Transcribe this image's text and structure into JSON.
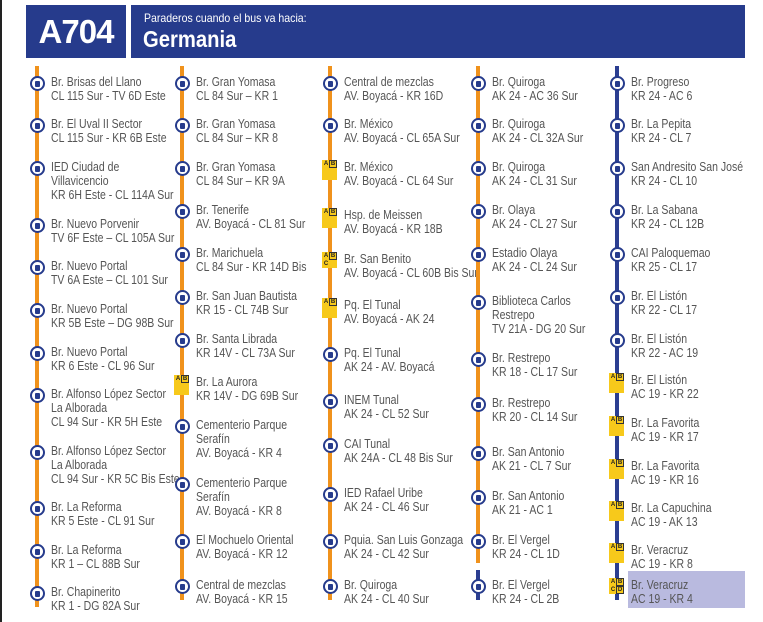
{
  "header": {
    "route_code": "A704",
    "subtitle": "Paraderos cuando el bus va hacia:",
    "destination": "Germania"
  },
  "colors": {
    "header": "#263b8c",
    "line_orange": "#f0921c",
    "line_blue": "#2b3e91",
    "badge": "#f7c91b",
    "highlight": "#b9badf"
  },
  "columns": [
    {
      "stops": [
        {
          "lines": [
            "Br. Brisas del Llano",
            "CL 115 Sur - TV 6D Este"
          ],
          "icon": "bus-stop-icon"
        },
        {
          "lines": [
            "Br. El Uval II Sector",
            "CL 115 Sur - KR 6B Este"
          ],
          "icon": "bus-stop-icon"
        },
        {
          "lines": [
            "IED Ciudad de",
            "Villavicencio",
            "KR 6H Este - CL 114A Sur"
          ],
          "icon": "bus-stop-icon"
        },
        {
          "lines": [
            "Br. Nuevo Porvenir",
            "TV 6F Este – CL 105A Sur"
          ],
          "icon": "bus-stop-icon"
        },
        {
          "lines": [
            "Br. Nuevo Portal",
            "TV 6A Este – CL 101 Sur"
          ],
          "icon": "bus-stop-icon"
        },
        {
          "lines": [
            "Br. Nuevo Portal",
            "KR 5B Este – DG 98B Sur"
          ],
          "icon": "bus-stop-icon"
        },
        {
          "lines": [
            "Br. Nuevo Portal",
            "KR 6 Este - CL 96 Sur"
          ],
          "icon": "bus-stop-icon"
        },
        {
          "lines": [
            "Br. Alfonso López Sector",
            "La Alborada",
            "CL 94 Sur - KR 5H Este"
          ],
          "icon": "bus-stop-icon"
        },
        {
          "lines": [
            "Br. Alfonso López Sector",
            "La Alborada",
            "CL 94 Sur - KR 5C Bis Este"
          ],
          "icon": "bus-stop-icon"
        },
        {
          "lines": [
            "Br. La Reforma",
            "KR 5 Este - CL 91 Sur"
          ],
          "icon": "bus-stop-icon"
        },
        {
          "lines": [
            "Br. La Reforma",
            "KR 1 – CL 88B Sur"
          ],
          "icon": "bus-stop-icon"
        },
        {
          "lines": [
            "Br. Chapinerito",
            "KR 1 - DG 82A Sur"
          ],
          "icon": "bus-stop-icon"
        }
      ]
    },
    {
      "stops": [
        {
          "lines": [
            "Br. Gran Yomasa",
            "CL 84 Sur – KR 1"
          ],
          "icon": "bus-stop-icon"
        },
        {
          "lines": [
            "Br. Gran Yomasa",
            "CL 84 Sur – KR 8"
          ],
          "icon": "bus-stop-icon"
        },
        {
          "lines": [
            "Br. Gran Yomasa",
            "CL 84 Sur – KR 9A"
          ],
          "icon": "bus-stop-icon"
        },
        {
          "lines": [
            "Br. Tenerife",
            "AV. Boyacá - CL 81 Sur"
          ],
          "icon": "bus-stop-icon"
        },
        {
          "lines": [
            "Br. Marichuela",
            "CL 84 Sur - KR 14D Bis"
          ],
          "icon": "bus-stop-icon"
        },
        {
          "lines": [
            "Br. San Juan Bautista",
            "KR 15 - CL 74B Sur"
          ],
          "icon": "bus-stop-icon"
        },
        {
          "lines": [
            "Br. Santa Librada",
            "KR 14V - CL 73A Sur"
          ],
          "icon": "bus-stop-icon"
        },
        {
          "lines": [
            "Br. La Aurora",
            "KR 14V - DG 69B Sur"
          ],
          "icon": "modules-ab-icon",
          "modules": [
            "A",
            "B"
          ]
        },
        {
          "lines": [
            "Cementerio Parque",
            "Serafín",
            "AV. Boyacá - KR 4"
          ],
          "icon": "bus-stop-icon"
        },
        {
          "lines": [
            "Cementerio Parque",
            "Serafín",
            "AV. Boyacá - KR 8"
          ],
          "icon": "bus-stop-icon"
        },
        {
          "lines": [
            "El Mochuelo Oriental",
            "AV. Boyacá - KR 12"
          ],
          "icon": "bus-stop-icon"
        },
        {
          "lines": [
            "Central de mezclas",
            "AV. Boyacá - KR 15"
          ],
          "icon": "bus-stop-icon"
        }
      ]
    },
    {
      "stops": [
        {
          "lines": [
            "Central de mezclas",
            "AV. Boyacá - KR 16D"
          ],
          "icon": "bus-stop-icon"
        },
        {
          "lines": [
            "Br. México",
            "AV. Boyacá - CL 65A Sur"
          ],
          "icon": "bus-stop-icon"
        },
        {
          "lines": [
            "Br. México",
            "AV. Boyacá - CL 64 Sur"
          ],
          "icon": "modules-ab-icon",
          "modules": [
            "A",
            "B"
          ]
        },
        {
          "lines": [
            "Hsp. de Meissen",
            "AV. Boyacá - KR 18B"
          ],
          "icon": "modules-ab-icon",
          "modules": [
            "A",
            "B"
          ]
        },
        {
          "lines": [
            "Br. San Benito",
            "AV. Boyacá - CL 60B Bis Sur"
          ],
          "icon": "modules-abc-icon",
          "modules": [
            "A",
            "B",
            "C"
          ]
        },
        {
          "lines": [
            "Pq. El Tunal",
            "AV. Boyacá - AK 24"
          ],
          "icon": "modules-ab-icon",
          "modules": [
            "A",
            "B"
          ]
        },
        {
          "lines": [
            "Pq. El Tunal",
            "AK 24 - AV. Boyacá"
          ],
          "icon": "bus-stop-icon"
        },
        {
          "lines": [
            "INEM Tunal",
            "AK 24 - CL 52 Sur"
          ],
          "icon": "bus-stop-icon"
        },
        {
          "lines": [
            "CAI Tunal",
            "AK 24A - CL 48 Bis Sur"
          ],
          "icon": "bus-stop-icon"
        },
        {
          "lines": [
            "IED Rafael Uribe",
            "AK 24 - CL 46 Sur"
          ],
          "icon": "bus-stop-icon"
        },
        {
          "lines": [
            "Pquia. San Luis Gonzaga",
            "AK 24 - CL 42 Sur"
          ],
          "icon": "bus-stop-icon"
        },
        {
          "lines": [
            "Br. Quiroga",
            "AK 24 - CL 40 Sur"
          ],
          "icon": "bus-stop-icon"
        }
      ]
    },
    {
      "stops": [
        {
          "lines": [
            "Br. Quiroga",
            "AK 24 - AC 36 Sur"
          ],
          "icon": "bus-stop-icon"
        },
        {
          "lines": [
            "Br. Quiroga",
            "AK 24 - CL 32A Sur"
          ],
          "icon": "bus-stop-icon"
        },
        {
          "lines": [
            "Br. Quiroga",
            "AK 24 - CL 31 Sur"
          ],
          "icon": "bus-stop-icon"
        },
        {
          "lines": [
            "Br. Olaya",
            "AK 24 - CL 27 Sur"
          ],
          "icon": "bus-stop-icon"
        },
        {
          "lines": [
            "Estadio Olaya",
            "AK 24 - CL 24 Sur"
          ],
          "icon": "bus-stop-icon"
        },
        {
          "lines": [
            "Biblioteca Carlos",
            "Restrepo",
            "TV 21A - DG 20 Sur"
          ],
          "icon": "bus-stop-icon"
        },
        {
          "lines": [
            "Br. Restrepo",
            "KR 18 - CL 17 Sur"
          ],
          "icon": "bus-stop-icon"
        },
        {
          "lines": [
            "Br. Restrepo",
            "KR 20 - CL 14 Sur"
          ],
          "icon": "bus-stop-icon"
        },
        {
          "lines": [
            "Br. San Antonio",
            "AK 21 - CL 7 Sur"
          ],
          "icon": "bus-stop-icon"
        },
        {
          "lines": [
            "Br. San Antonio",
            "AK 21 - AC 1"
          ],
          "icon": "bus-stop-icon"
        },
        {
          "lines": [
            "Br. El Vergel",
            "KR 24 - CL 1D"
          ],
          "icon": "bus-stop-icon"
        },
        {
          "lines": [
            "Br. El Vergel",
            "KR 24 - CL 2B"
          ],
          "icon": "bus-stop-icon"
        }
      ]
    },
    {
      "stops": [
        {
          "lines": [
            "Br. Progreso",
            "KR 24 - AC 6"
          ],
          "icon": "bus-stop-icon"
        },
        {
          "lines": [
            "Br. La Pepita",
            "KR 24 - CL 7"
          ],
          "icon": "bus-stop-icon"
        },
        {
          "lines": [
            "San Andresito San José",
            "KR 24 - CL 10"
          ],
          "icon": "bus-stop-icon"
        },
        {
          "lines": [
            "Br. La Sabana",
            "KR 24 - CL 12B"
          ],
          "icon": "bus-stop-icon"
        },
        {
          "lines": [
            "CAI Paloquemao",
            "KR 25 - CL 17"
          ],
          "icon": "bus-stop-icon"
        },
        {
          "lines": [
            "Br. El Listón",
            "KR 22 - CL 17"
          ],
          "icon": "bus-stop-icon"
        },
        {
          "lines": [
            "Br. El Listón",
            "KR 22 - AC 19"
          ],
          "icon": "bus-stop-icon"
        },
        {
          "lines": [
            "Br. El Listón",
            "AC 19 - KR 22"
          ],
          "icon": "modules-ab-icon",
          "modules": [
            "A",
            "B"
          ]
        },
        {
          "lines": [
            "Br. La Favorita",
            "AC 19 - KR 17"
          ],
          "icon": "modules-ab-icon",
          "modules": [
            "A",
            "B"
          ]
        },
        {
          "lines": [
            "Br. La Favorita",
            "AC 19 - KR 16"
          ],
          "icon": "modules-ab-icon",
          "modules": [
            "A",
            "B"
          ]
        },
        {
          "lines": [
            "Br. La Capuchina",
            "AC 19 - AK 13"
          ],
          "icon": "modules-ab-icon",
          "modules": [
            "A",
            "B"
          ]
        },
        {
          "lines": [
            "Br. Veracruz",
            "AC 19 - KR 8"
          ],
          "icon": "modules-ab-icon",
          "modules": [
            "A",
            "B"
          ]
        },
        {
          "lines": [
            "Br. Veracruz",
            "AC 19 - KR 4"
          ],
          "icon": "modules-abcd-icon",
          "modules": [
            "A",
            "B",
            "C",
            "D"
          ],
          "highlighted": true
        }
      ]
    }
  ]
}
